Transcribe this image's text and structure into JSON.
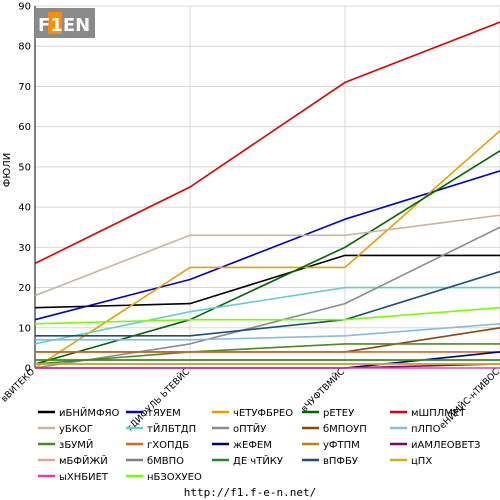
{
  "logo": {
    "text": "F1EN",
    "accent": "#ff8c00"
  },
  "footer": {
    "url": "http://f1.f-e-n.net/"
  },
  "chart_data": {
    "type": "line",
    "title": "",
    "xlabel": "",
    "ylabel": "ФЮЛИ",
    "ylim": [
      0,
      90
    ],
    "yticks": [
      0,
      10,
      20,
      30,
      40,
      50,
      60,
      70,
      80,
      90
    ],
    "categories": [
      "вВИТЕКО",
      "гДИФУЛЬ ЬТЕВЙС",
      "вЧУФТВМЙС",
      "еНЙМЙС-нТИВОС"
    ],
    "grid": true,
    "legend_position": "bottom",
    "series": [
      {
        "name": "иБНЙМФЯО",
        "color": "#000000",
        "values": [
          15,
          16,
          28,
          28
        ]
      },
      {
        "name": "тЯУЕМ",
        "color": "#0000cc",
        "values": [
          12,
          22,
          37,
          49
        ]
      },
      {
        "name": "чЕТУФБРЕО",
        "color": "#e8a000",
        "values": [
          0,
          25,
          25,
          59
        ]
      },
      {
        "name": "рЕТЕУ",
        "color": "#006400",
        "values": [
          1,
          12,
          30,
          54
        ]
      },
      {
        "name": "мШПЛМЕТ",
        "color": "#e00000",
        "values": [
          26,
          45,
          71,
          86
        ]
      },
      {
        "name": "уБКОГ",
        "color": "#c8b4a0",
        "values": [
          18,
          33,
          33,
          38
        ]
      },
      {
        "name": "тЙЛБТДП",
        "color": "#66cccc",
        "values": [
          6,
          14,
          20,
          20
        ]
      },
      {
        "name": "оПТЙУ",
        "color": "#8c8c8c",
        "values": [
          0,
          6,
          16,
          35
        ]
      },
      {
        "name": "бМПОУП",
        "color": "#8b4513",
        "values": [
          4,
          4,
          4,
          10
        ]
      },
      {
        "name": "пЛПО",
        "color": "#88bbdd",
        "values": [
          7,
          7,
          8,
          11
        ]
      },
      {
        "name": "зБУМЙ",
        "color": "#4b8b1e",
        "values": [
          1,
          4,
          6,
          6
        ]
      },
      {
        "name": "гХОПДБ",
        "color": "#d2691e",
        "values": [
          4,
          4,
          4,
          4
        ]
      },
      {
        "name": "жЕФЕМ",
        "color": "#000080",
        "values": [
          0,
          0,
          0,
          4
        ]
      },
      {
        "name": "уФТПМ",
        "color": "#b8860b",
        "values": [
          2,
          2,
          2,
          2
        ]
      },
      {
        "name": "иАМЛЕОВЕТЗ",
        "color": "#800080",
        "values": [
          0,
          0,
          0,
          1
        ]
      },
      {
        "name": "мБФЙЖЙ",
        "color": "#e8a0a0",
        "values": [
          1,
          1,
          1,
          1
        ]
      },
      {
        "name": "бМВПО",
        "color": "#808080",
        "values": [
          1,
          1,
          1,
          1
        ]
      },
      {
        "name": "ДЕ чТЙКУ",
        "color": "#228b22",
        "values": [
          2,
          2,
          2,
          2
        ]
      },
      {
        "name": "вПФБУ",
        "color": "#1f4e79",
        "values": [
          8,
          8,
          12,
          24
        ]
      },
      {
        "name": "цПХ",
        "color": "#daa520",
        "values": [
          1,
          1,
          1,
          1
        ]
      },
      {
        "name": "ыХНБИЕТ",
        "color": "#e040a0",
        "values": [
          0,
          0,
          0,
          0
        ]
      },
      {
        "name": "нБЗОХУЕО",
        "color": "#7cfc00",
        "values": [
          11,
          12,
          12,
          15
        ]
      }
    ]
  }
}
